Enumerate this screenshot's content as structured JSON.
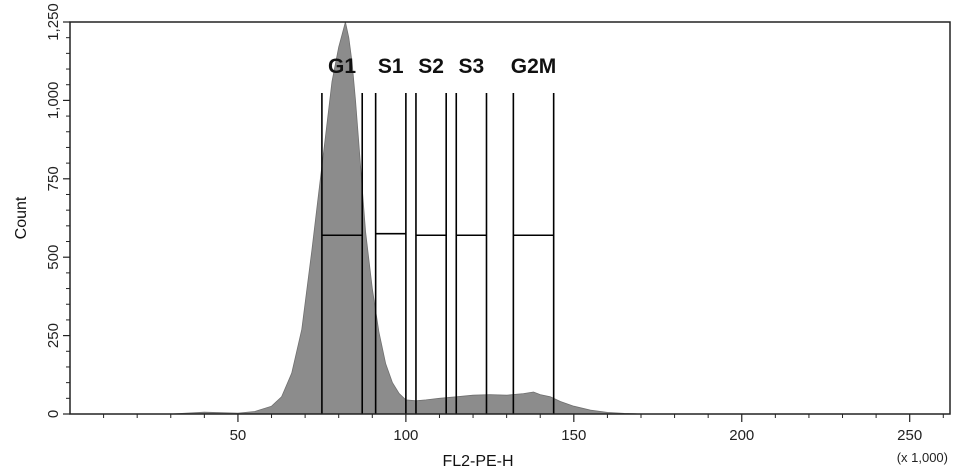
{
  "chart_data": {
    "type": "area",
    "xlabel": "FL2-PE-H",
    "x_multiplier_label": "(x 1,000)",
    "ylabel": "Count",
    "xlim": [
      0,
      262
    ],
    "ylim": [
      0,
      1250
    ],
    "x_ticks": [
      50,
      100,
      150,
      200,
      250
    ],
    "x_tick_labels": [
      "50",
      "100",
      "150",
      "200",
      "250"
    ],
    "y_ticks": [
      0,
      250,
      500,
      750,
      1000,
      1250
    ],
    "y_tick_labels": [
      "0",
      "250",
      "500",
      "750",
      "1,000",
      "1,250"
    ],
    "grid": false,
    "fill_color": "#8c8c8c",
    "histogram": {
      "x": [
        30,
        40,
        45,
        50,
        55,
        60,
        63,
        66,
        69,
        72,
        74,
        76,
        78,
        80,
        81,
        82,
        83,
        84,
        85,
        86,
        87,
        88,
        90,
        92,
        94,
        96,
        98,
        100,
        103,
        106,
        110,
        115,
        120,
        125,
        130,
        135,
        138,
        140,
        143,
        146,
        150,
        155,
        160,
        165,
        170,
        200,
        262
      ],
      "y": [
        0,
        6,
        4,
        3,
        8,
        25,
        55,
        130,
        270,
        520,
        700,
        880,
        1060,
        1170,
        1210,
        1250,
        1200,
        1120,
        1000,
        860,
        720,
        580,
        400,
        260,
        160,
        100,
        65,
        45,
        42,
        45,
        50,
        55,
        60,
        62,
        60,
        65,
        70,
        62,
        55,
        40,
        25,
        12,
        5,
        2,
        0,
        0,
        0
      ]
    },
    "gates": [
      {
        "label": "G1",
        "x_start": 75,
        "x_end": 87,
        "level": 570
      },
      {
        "label": "S1",
        "x_start": 91,
        "x_end": 100,
        "level": 575
      },
      {
        "label": "S2",
        "x_start": 103,
        "x_end": 112,
        "level": 570
      },
      {
        "label": "S3",
        "x_start": 115,
        "x_end": 124,
        "level": 570
      },
      {
        "label": "G2M",
        "x_start": 132,
        "x_end": 144,
        "level": 570
      }
    ]
  }
}
